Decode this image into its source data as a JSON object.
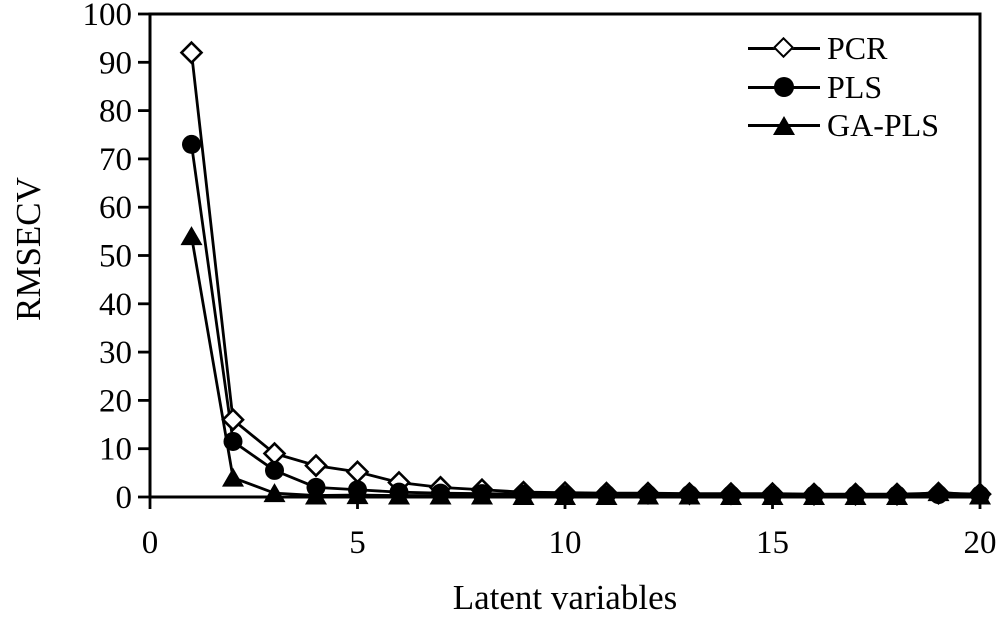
{
  "figure": {
    "background": "#ffffff",
    "ink_color": "#000000"
  },
  "chart_data": {
    "type": "line",
    "title": "",
    "xlabel": "Latent variables",
    "ylabel": "RMSECV",
    "xlim": [
      0,
      20
    ],
    "ylim": [
      0,
      100
    ],
    "xticks": [
      0,
      5,
      10,
      15,
      20
    ],
    "yticks": [
      0,
      10,
      20,
      30,
      40,
      50,
      60,
      70,
      80,
      90,
      100
    ],
    "grid": false,
    "legend_position": "top-right-inside",
    "x": [
      1,
      2,
      3,
      4,
      5,
      6,
      7,
      8,
      9,
      10,
      11,
      12,
      13,
      14,
      15,
      16,
      17,
      18,
      19,
      20
    ],
    "series": [
      {
        "name": "PCR",
        "marker": "open-diamond",
        "color": "#000000",
        "values": [
          92,
          16,
          9,
          6.5,
          5.2,
          3,
          2,
          1.5,
          1,
          0.9,
          0.8,
          0.8,
          0.7,
          0.7,
          0.7,
          0.6,
          0.6,
          0.6,
          0.8,
          0.6
        ]
      },
      {
        "name": "PLS",
        "marker": "filled-circle",
        "color": "#000000",
        "values": [
          73,
          11.5,
          5.5,
          2,
          1.5,
          1,
          0.8,
          0.7,
          0.6,
          0.5,
          0.5,
          0.5,
          0.5,
          0.4,
          0.4,
          0.4,
          0.4,
          0.4,
          0.5,
          0.4
        ]
      },
      {
        "name": "GA-PLS",
        "marker": "filled-triangle",
        "color": "#000000",
        "values": [
          54,
          4,
          0.8,
          0.3,
          0.4,
          0.3,
          0.3,
          0.3,
          0.2,
          0.2,
          0.2,
          0.3,
          0.3,
          0.2,
          0.2,
          0.2,
          0.2,
          0.2,
          1,
          0.3
        ]
      }
    ]
  }
}
